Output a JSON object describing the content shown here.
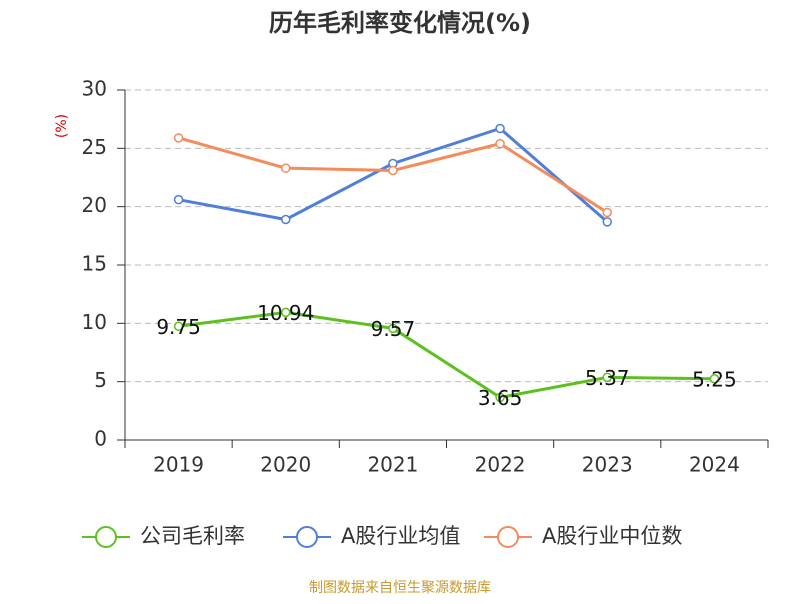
{
  "chart_data": {
    "type": "line",
    "title": "历年毛利率变化情况(%)",
    "y_label": "(%)",
    "source": "制图数据来自恒生聚源数据库",
    "categories": [
      "2019",
      "2020",
      "2021",
      "2022",
      "2023",
      "2024"
    ],
    "series": [
      {
        "name": "公司毛利率",
        "color": "#5cc11f",
        "values": [
          9.75,
          10.94,
          9.57,
          3.65,
          5.37,
          5.25
        ],
        "show_labels": true
      },
      {
        "name": "A股行业均值",
        "color": "#4f7fdb",
        "values": [
          20.6,
          18.9,
          23.7,
          26.7,
          18.7,
          null
        ],
        "show_labels": false
      },
      {
        "name": "A股行业中位数",
        "color": "#f58b5b",
        "values": [
          25.9,
          23.3,
          23.1,
          25.4,
          19.5,
          null
        ],
        "show_labels": false
      }
    ],
    "ylim": [
      0,
      30
    ],
    "yticks": [
      0,
      5,
      10,
      15,
      20,
      25,
      30
    ],
    "grid": true
  }
}
